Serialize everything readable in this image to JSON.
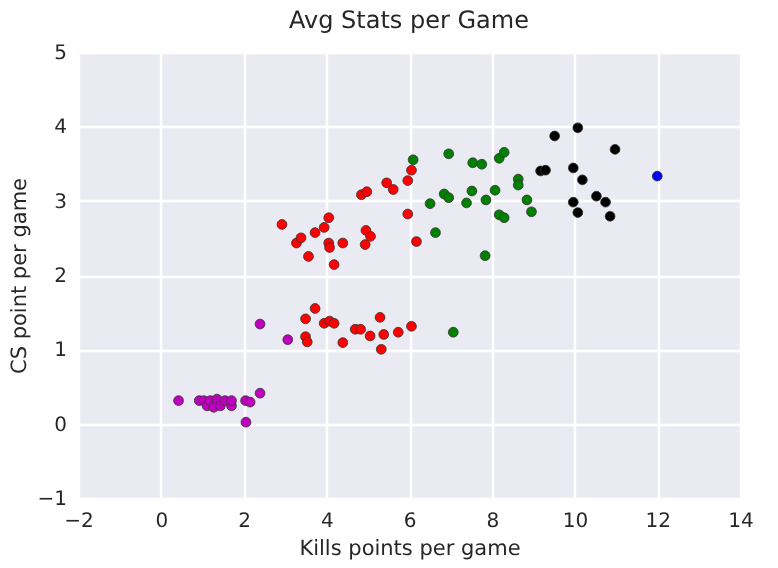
{
  "chart_data": {
    "type": "scatter",
    "title": "Avg Stats per Game",
    "xlabel": "Kills points per game",
    "ylabel": "CS point per game",
    "xlim": [
      -2,
      14
    ],
    "ylim": [
      -1,
      5
    ],
    "xticks": [
      -2,
      0,
      2,
      4,
      6,
      8,
      10,
      12,
      14
    ],
    "yticks": [
      -1,
      0,
      1,
      2,
      3,
      4,
      5
    ],
    "grid": true,
    "marker": "circle",
    "series": [
      {
        "color": "#bf00bf",
        "x": [
          0.43,
          0.93,
          1.04,
          1.12,
          1.2,
          1.28,
          1.36,
          1.44,
          1.55,
          1.71,
          1.71,
          2.05,
          2.16,
          2.06,
          2.4,
          2.4,
          3.07
        ],
        "values": [
          0.31,
          0.31,
          0.31,
          0.24,
          0.31,
          0.22,
          0.33,
          0.24,
          0.31,
          0.24,
          0.31,
          0.31,
          0.29,
          0.02,
          0.41,
          1.34,
          1.13
        ]
      },
      {
        "color": "#ff0000",
        "x": [
          2.93,
          3.28,
          3.39,
          3.57,
          3.73,
          3.95,
          4.06,
          4.06,
          4.08,
          4.19,
          4.4,
          4.85,
          4.98,
          4.96,
          5.07,
          4.94,
          5.46,
          5.62,
          5.97,
          6.06,
          5.97,
          6.18,
          3.5,
          3.73,
          3.5,
          3.54,
          3.95,
          4.08,
          4.19,
          4.4,
          4.7,
          4.83,
          5.06,
          5.3,
          5.39,
          5.33,
          5.74,
          6.06
        ],
        "values": [
          2.68,
          2.43,
          2.5,
          2.25,
          2.57,
          2.64,
          2.77,
          2.43,
          2.37,
          2.14,
          2.43,
          3.08,
          3.12,
          2.6,
          2.52,
          2.41,
          3.24,
          3.15,
          3.27,
          3.41,
          2.82,
          2.45,
          1.41,
          1.55,
          1.17,
          1.1,
          1.35,
          1.38,
          1.35,
          1.09,
          1.27,
          1.27,
          1.18,
          1.43,
          1.2,
          1.0,
          1.23,
          1.31
        ]
      },
      {
        "color": "#008000",
        "x": [
          6.1,
          6.96,
          6.51,
          6.64,
          6.85,
          6.96,
          7.54,
          7.76,
          7.39,
          7.52,
          7.86,
          7.84,
          8.08,
          8.18,
          8.3,
          8.18,
          8.3,
          8.64,
          8.64,
          8.85,
          8.96,
          7.07
        ],
        "values": [
          3.55,
          3.63,
          2.96,
          2.57,
          3.09,
          3.04,
          3.51,
          3.49,
          2.97,
          3.13,
          3.01,
          2.26,
          3.14,
          3.57,
          3.65,
          2.81,
          2.77,
          3.29,
          3.21,
          3.01,
          2.85,
          1.23
        ]
      },
      {
        "color": "#000000",
        "x": [
          9.52,
          10.08,
          9.18,
          9.3,
          9.97,
          9.97,
          10.08,
          10.19,
          10.53,
          10.75,
          10.86,
          10.98
        ],
        "values": [
          3.87,
          3.98,
          3.4,
          3.41,
          3.44,
          2.98,
          2.84,
          3.28,
          3.06,
          2.98,
          2.79,
          3.69
        ]
      },
      {
        "color": "#0000ff",
        "x": [
          12.0
        ],
        "values": [
          3.33
        ]
      }
    ]
  }
}
